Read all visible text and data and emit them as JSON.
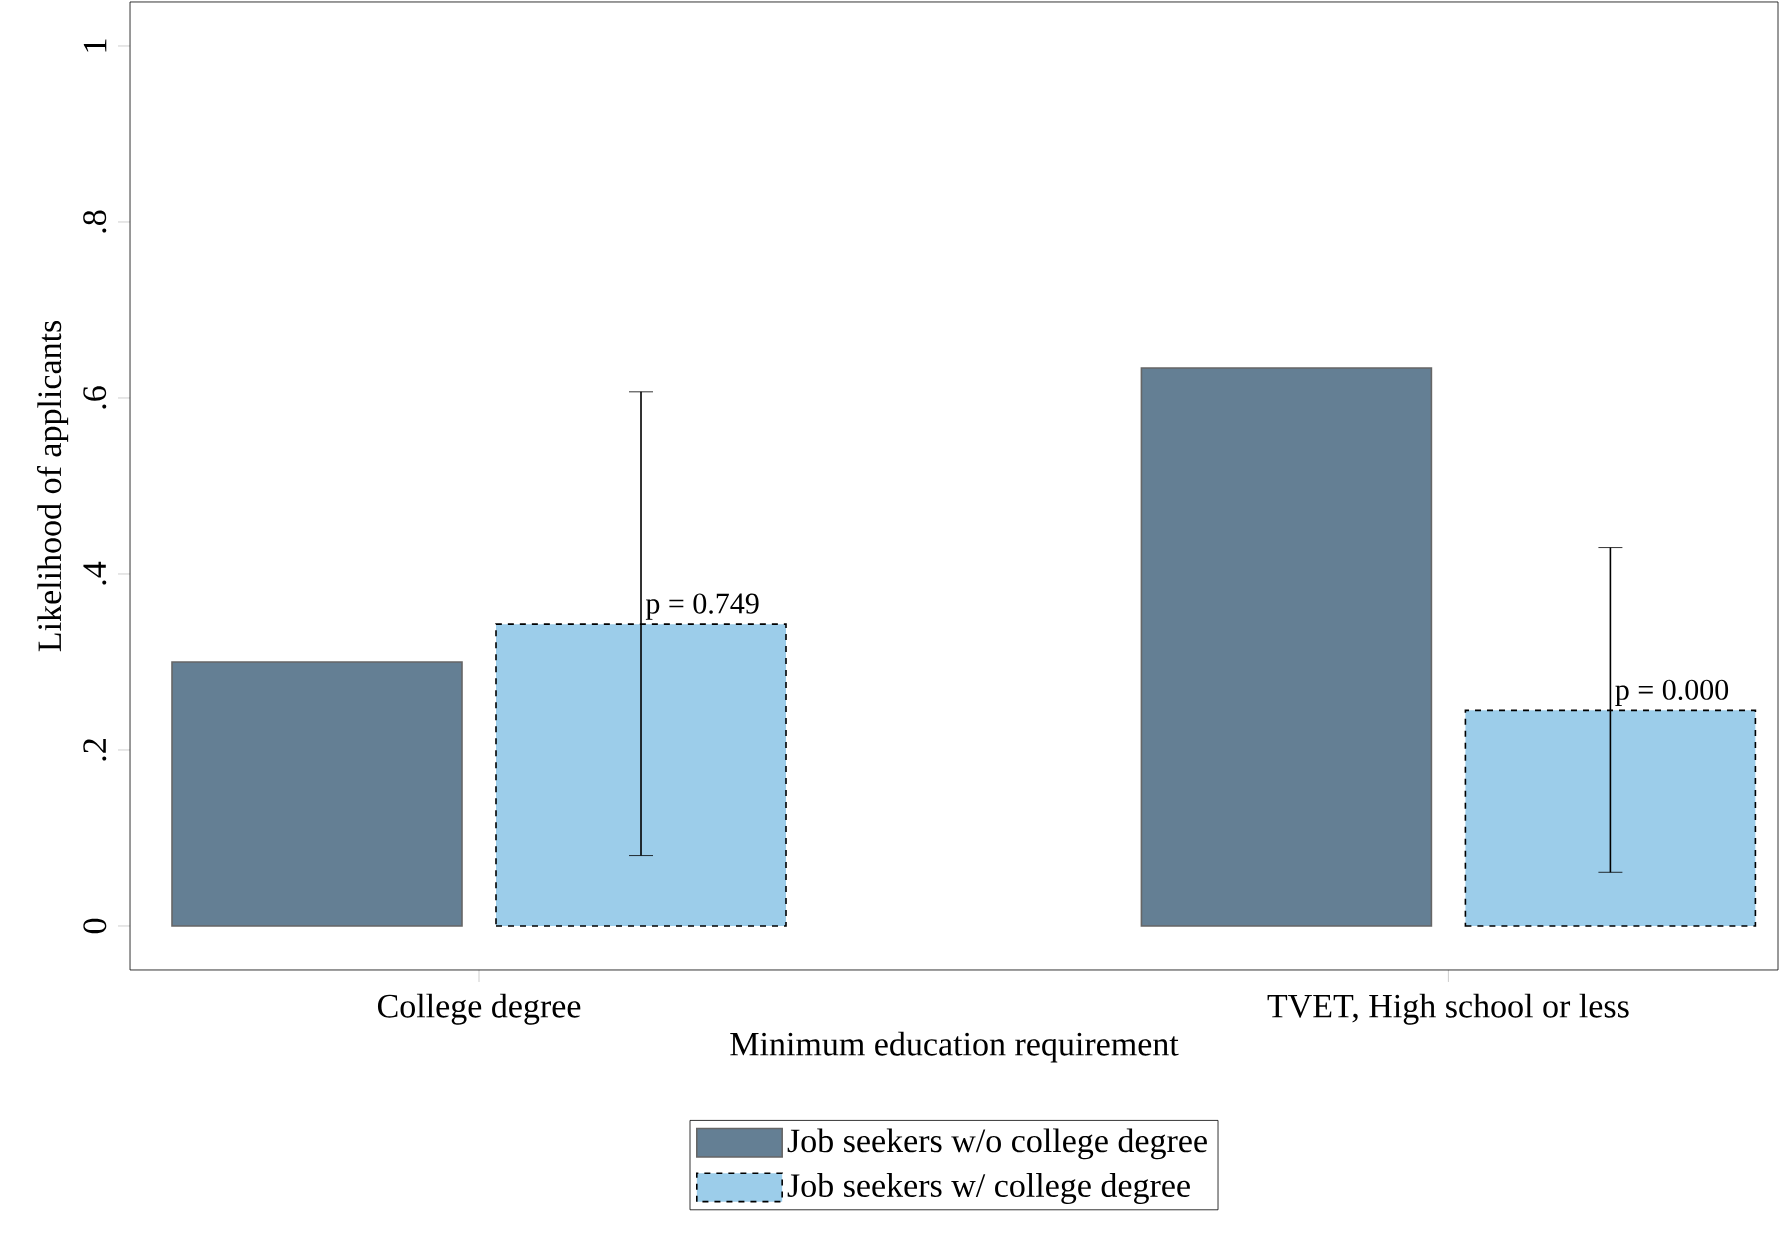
{
  "chart_data": {
    "type": "bar",
    "xlabel": "Minimum education requirement",
    "ylabel": "Likelihood of applicants",
    "categories": [
      "College degree",
      "TVET, High school or less"
    ],
    "series": [
      {
        "name": "Job seekers w/o college degree",
        "color": "#647f94",
        "values": [
          0.3,
          0.634
        ]
      },
      {
        "name": "Job seekers w/ college degree",
        "color": "#9ccdea",
        "values": [
          0.343,
          0.245
        ],
        "errors": [
          [
            0.08,
            0.607
          ],
          [
            0.061,
            0.43
          ]
        ],
        "line_style": "dashed"
      }
    ],
    "ylim": [
      -0.05,
      1.05
    ],
    "yticks": [
      {
        "value": 0,
        "label": "0"
      },
      {
        "value": 0.2,
        "label": ".2"
      },
      {
        "value": 0.4,
        "label": ".4"
      },
      {
        "value": 0.6,
        "label": ".6"
      },
      {
        "value": 0.8,
        "label": ".8"
      },
      {
        "value": 1,
        "label": "1"
      }
    ],
    "annotations": [
      "p = 0.749",
      "p = 0.000"
    ],
    "legend": "bottom",
    "grid": false
  }
}
